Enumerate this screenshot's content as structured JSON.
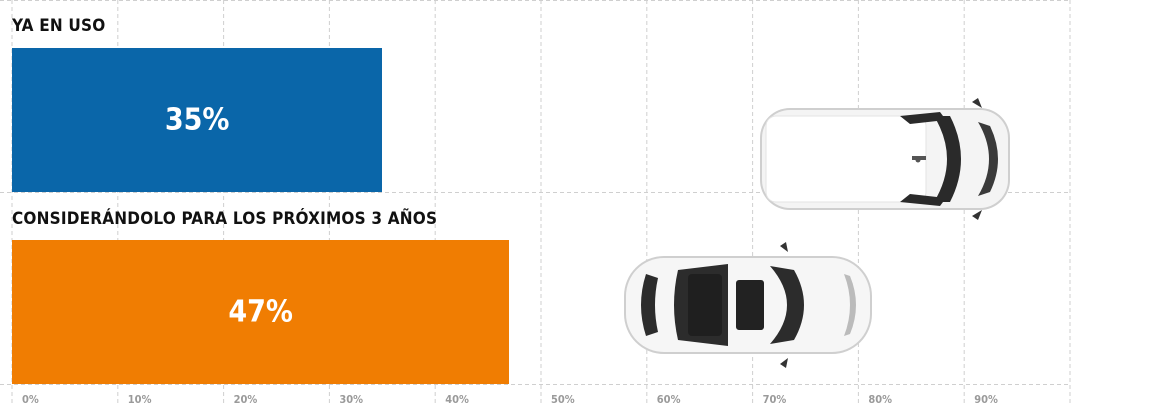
{
  "chart_data": {
    "type": "bar",
    "orientation": "horizontal",
    "categories": [
      "YA EN USO",
      "CONSIDERÁNDOLO PARA LOS PRÓXIMOS 3 AÑOS"
    ],
    "values": [
      35,
      47
    ],
    "value_labels": [
      "35%",
      "47%"
    ],
    "xlim": [
      0,
      100
    ],
    "x_ticks": [
      "0%",
      "10%",
      "20%",
      "30%",
      "40%",
      "50%",
      "60%",
      "70%",
      "80%",
      "90%"
    ],
    "grid": true,
    "colors": [
      "#0a66a9",
      "#f07d02"
    ],
    "decorations": [
      "car-top-view",
      "car-top-view"
    ]
  }
}
